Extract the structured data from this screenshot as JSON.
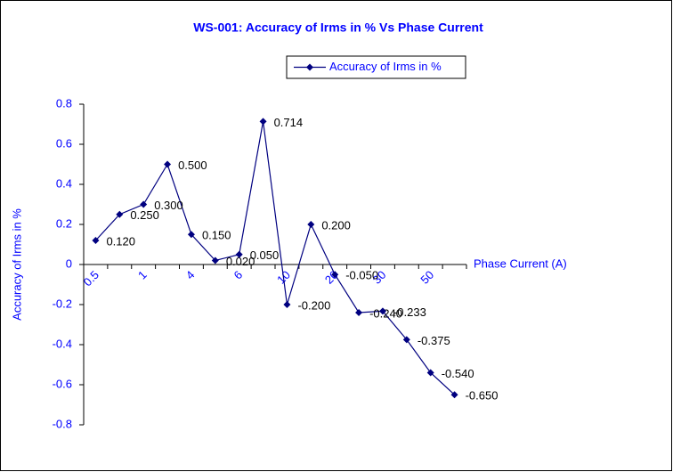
{
  "chart_data": {
    "type": "line",
    "title": "WS-001: Accuracy of Irms in % Vs Phase Current",
    "x_label": "Phase Current (A)",
    "y_label": "Accuracy of Irms in %",
    "categories": [
      "0.5",
      null,
      "1",
      null,
      "4",
      null,
      "6",
      null,
      "10",
      null,
      "20",
      null,
      "30",
      null,
      "50",
      null
    ],
    "series": [
      {
        "name": "Accuracy of Irms in %",
        "color": "#000080",
        "values": [
          0.12,
          0.25,
          0.3,
          0.5,
          0.15,
          0.02,
          0.05,
          0.714,
          -0.2,
          0.2,
          -0.05,
          -0.24,
          -0.233,
          -0.375,
          -0.54,
          -0.65
        ],
        "value_labels": [
          "0.120",
          "0.250",
          "0.300",
          "0.500",
          "0.150",
          "0.020",
          "0.050",
          "0.714",
          "-0.200",
          "0.200",
          "-0.050",
          "-0.240",
          "-0.233",
          "-0.375",
          "-0.540",
          "-0.650"
        ]
      }
    ],
    "ylim": [
      -0.8,
      0.8
    ],
    "yticks": [
      -0.8,
      -0.6,
      -0.4,
      -0.2,
      0,
      0.2,
      0.4,
      0.6,
      0.8
    ],
    "legend": "top"
  }
}
